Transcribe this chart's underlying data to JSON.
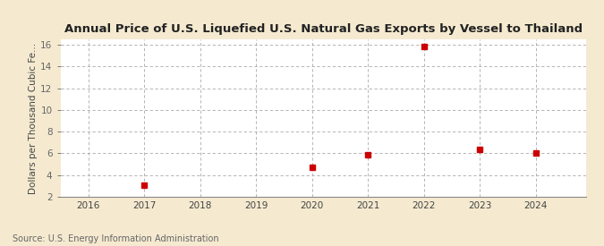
{
  "title": "Annual Price of U.S. Liquefied U.S. Natural Gas Exports by Vessel to Thailand",
  "ylabel": "Dollars per Thousand Cubic Fe...",
  "source": "Source: U.S. Energy Information Administration",
  "figure_bg": "#f5ead0",
  "plot_bg": "#ffffff",
  "years": [
    2017,
    2020,
    2021,
    2022,
    2023,
    2024
  ],
  "values": [
    3.1,
    4.75,
    5.85,
    15.85,
    6.4,
    6.05
  ],
  "xlim": [
    2015.5,
    2024.9
  ],
  "ylim": [
    2,
    16.5
  ],
  "yticks": [
    2,
    4,
    6,
    8,
    10,
    12,
    14,
    16
  ],
  "xticks": [
    2016,
    2017,
    2018,
    2019,
    2020,
    2021,
    2022,
    2023,
    2024
  ],
  "marker_color": "#cc0000",
  "marker_style": "s",
  "marker_size": 4,
  "grid_color": "#aaaaaa",
  "grid_style": "--",
  "title_fontsize": 9.5,
  "label_fontsize": 7.5,
  "tick_fontsize": 7.5,
  "source_fontsize": 7
}
